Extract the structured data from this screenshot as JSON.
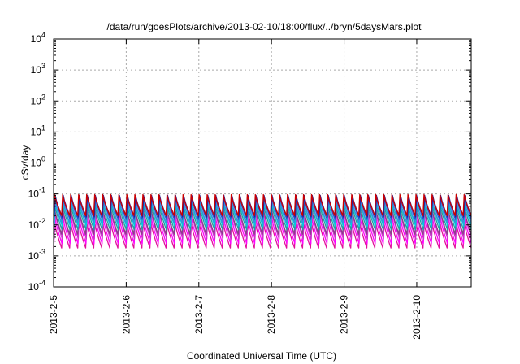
{
  "chart_data": {
    "type": "line",
    "title": "/data/run/goesPlots/archive/2013-02-10/18:00/flux/../bryn/5daysMars.plot",
    "xlabel": "Coordinated Universal Time (UTC)",
    "ylabel": "cSv/day",
    "y_scale": "log",
    "ylim": [
      0.0001,
      10000
    ],
    "xlim": [
      "2013-02-05 00:00",
      "2013-02-10 18:00"
    ],
    "y_ticks": [
      {
        "base": "10",
        "exp": "-4"
      },
      {
        "base": "10",
        "exp": "-3"
      },
      {
        "base": "10",
        "exp": "-2"
      },
      {
        "base": "10",
        "exp": "-1"
      },
      {
        "base": "10",
        "exp": "0"
      },
      {
        "base": "10",
        "exp": "1"
      },
      {
        "base": "10",
        "exp": "2"
      },
      {
        "base": "10",
        "exp": "3"
      },
      {
        "base": "10",
        "exp": "4"
      }
    ],
    "x_ticks": [
      "2013-2-5",
      "2013-2-6",
      "2013-2-7",
      "2013-2-8",
      "2013-2-9",
      "2013-2-10"
    ],
    "grid": true,
    "legend": "none",
    "cycles_per_day": 9,
    "series": [
      {
        "color": "#e0119a",
        "peak": 0.012,
        "trough": 0.0018
      },
      {
        "color": "#ff00ff",
        "peak": 0.018,
        "trough": 0.0025
      },
      {
        "color": "#cc33cc",
        "peak": 0.025,
        "trough": 0.0035
      },
      {
        "color": "#8a3d8a",
        "peak": 0.035,
        "trough": 0.005
      },
      {
        "color": "#1fa0a0",
        "peak": 0.045,
        "trough": 0.007
      },
      {
        "color": "#00c8e0",
        "peak": 0.055,
        "trough": 0.009
      },
      {
        "color": "#3a8fd8",
        "peak": 0.07,
        "trough": 0.012
      },
      {
        "color": "#2b4fd0",
        "peak": 0.085,
        "trough": 0.015
      },
      {
        "color": "#2020a0",
        "peak": 0.09,
        "trough": 0.018
      },
      {
        "color": "#cc0000",
        "peak": 0.095,
        "trough": 0.02
      }
    ]
  }
}
